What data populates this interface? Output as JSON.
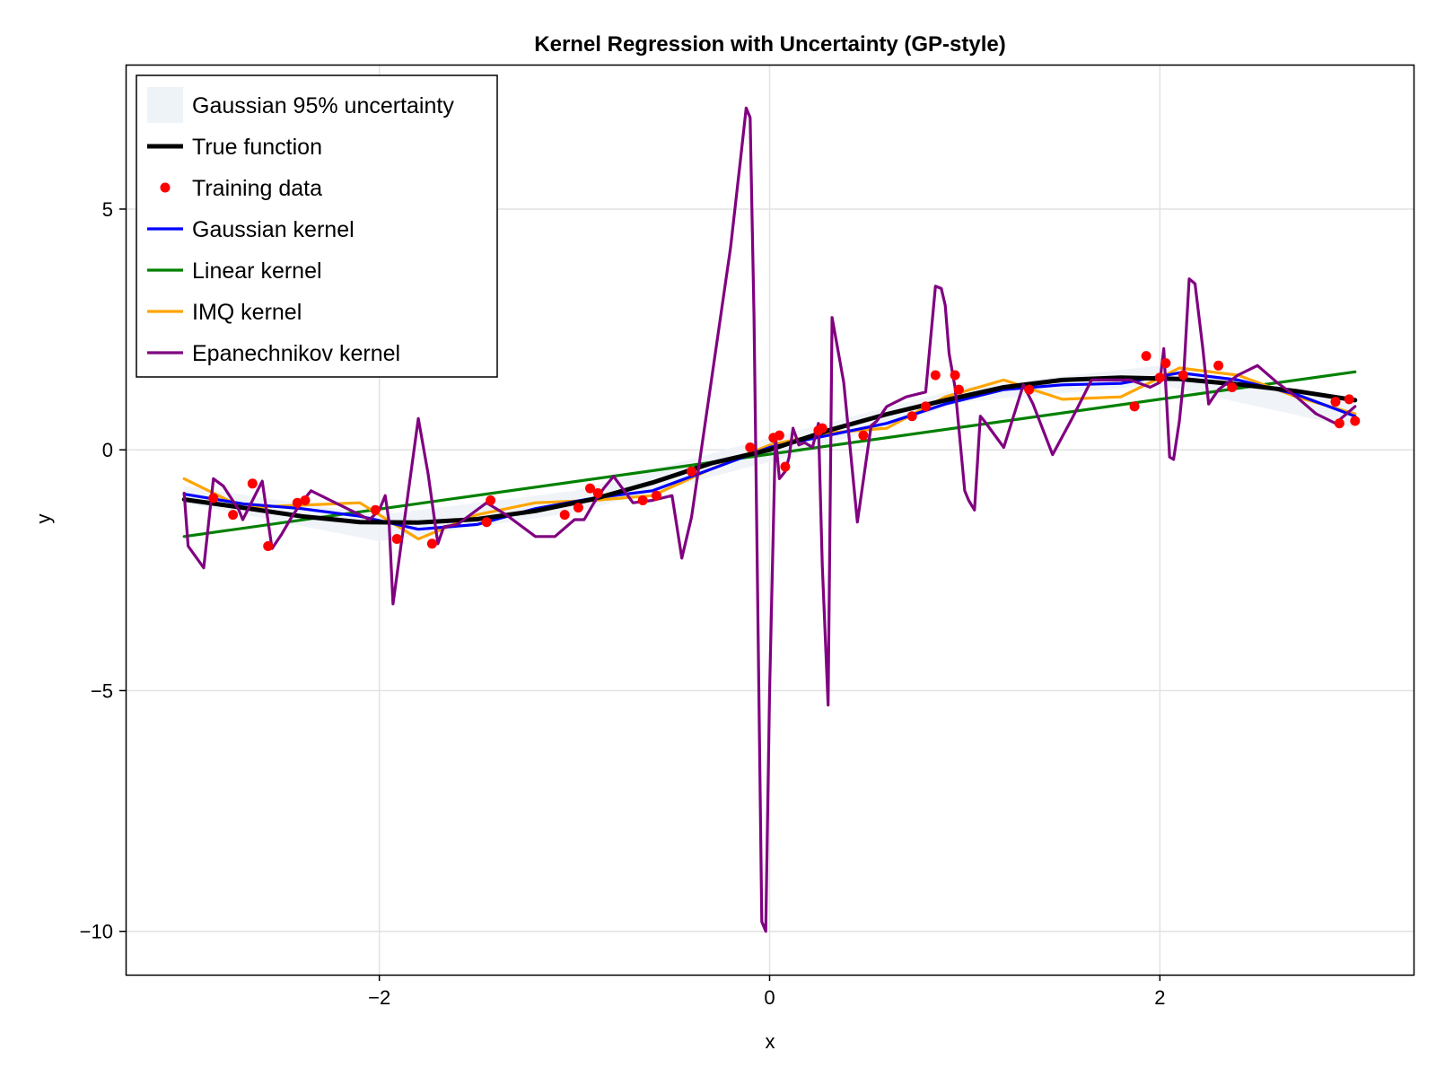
{
  "chart_data": {
    "type": "line",
    "title": "Kernel Regression with Uncertainty (GP-style)",
    "xlabel": "x",
    "ylabel": "y",
    "xlim": [
      -3.3,
      3.3
    ],
    "ylim": [
      -10.9,
      8.0
    ],
    "xticks": [
      -2,
      0,
      2
    ],
    "xtick_labels": [
      "−2",
      "0",
      "2"
    ],
    "yticks": [
      -10,
      -5,
      0,
      5
    ],
    "ytick_labels": [
      "−10",
      "−5",
      "0",
      "5"
    ],
    "grid": true,
    "legend_position": "top-left",
    "legend": [
      {
        "label": "Gaussian 95% uncertainty",
        "kind": "band",
        "color": "#eef3f8"
      },
      {
        "label": "True function",
        "kind": "line",
        "color": "#000000"
      },
      {
        "label": "Training data",
        "kind": "marker",
        "color": "#ff0000"
      },
      {
        "label": "Gaussian kernel",
        "kind": "line",
        "color": "#0000ff"
      },
      {
        "label": "Linear kernel",
        "kind": "line",
        "color": "#008000"
      },
      {
        "label": "IMQ kernel",
        "kind": "line",
        "color": "#ffa500"
      },
      {
        "label": "Epanechnikov kernel",
        "kind": "line",
        "color": "#800080"
      }
    ],
    "band": {
      "name": "Gaussian 95% uncertainty",
      "color": "#eef3f8",
      "x": [
        -3,
        -2,
        -1,
        0,
        1,
        2,
        3
      ],
      "lower": [
        -1.1,
        -1.9,
        -1.3,
        -0.25,
        1.0,
        1.35,
        0.45
      ],
      "upper": [
        -0.75,
        -1.35,
        -0.85,
        0.25,
        1.3,
        1.75,
        0.95
      ]
    },
    "series": [
      {
        "name": "True function",
        "color": "#000000",
        "x": [
          -3.0,
          -2.7,
          -2.4,
          -2.1,
          -1.8,
          -1.5,
          -1.2,
          -0.9,
          -0.6,
          -0.3,
          0.0,
          0.3,
          0.6,
          0.9,
          1.2,
          1.5,
          1.8,
          2.1,
          2.4,
          2.7,
          3.0
        ],
        "y": [
          -1.03,
          -1.2,
          -1.38,
          -1.5,
          -1.51,
          -1.44,
          -1.27,
          -1.02,
          -0.68,
          -0.28,
          0.0,
          0.4,
          0.74,
          1.03,
          1.3,
          1.45,
          1.5,
          1.47,
          1.36,
          1.22,
          1.03
        ]
      },
      {
        "name": "Gaussian kernel",
        "color": "#0000ff",
        "x": [
          -3.0,
          -2.7,
          -2.4,
          -2.1,
          -1.8,
          -1.5,
          -1.2,
          -0.9,
          -0.6,
          -0.3,
          0.0,
          0.3,
          0.6,
          0.9,
          1.2,
          1.5,
          1.8,
          2.1,
          2.4,
          2.7,
          3.0
        ],
        "y": [
          -0.92,
          -1.12,
          -1.22,
          -1.38,
          -1.65,
          -1.55,
          -1.22,
          -1.0,
          -0.85,
          -0.4,
          0.05,
          0.3,
          0.55,
          0.95,
          1.25,
          1.35,
          1.38,
          1.6,
          1.45,
          1.15,
          0.7
        ]
      },
      {
        "name": "Linear kernel",
        "color": "#008000",
        "x": [
          -3.0,
          3.0
        ],
        "y": [
          -1.8,
          1.62
        ]
      },
      {
        "name": "IMQ kernel",
        "color": "#ffa500",
        "x": [
          -3.0,
          -2.7,
          -2.4,
          -2.1,
          -1.8,
          -1.5,
          -1.2,
          -0.9,
          -0.6,
          -0.3,
          0.0,
          0.3,
          0.6,
          0.9,
          1.2,
          1.5,
          1.8,
          2.1,
          2.4,
          2.7,
          3.0
        ],
        "y": [
          -0.6,
          -1.2,
          -1.15,
          -1.1,
          -1.85,
          -1.35,
          -1.1,
          -1.05,
          -0.95,
          -0.4,
          0.1,
          0.35,
          0.45,
          1.1,
          1.45,
          1.05,
          1.1,
          1.7,
          1.55,
          1.1,
          0.75
        ]
      },
      {
        "name": "Epanechnikov kernel",
        "color": "#800080",
        "x": [
          -3.0,
          -2.98,
          -2.9,
          -2.85,
          -2.8,
          -2.72,
          -2.7,
          -2.6,
          -2.55,
          -2.5,
          -2.45,
          -2.4,
          -2.35,
          -2.2,
          -2.05,
          -2.0,
          -1.97,
          -1.95,
          -1.93,
          -1.8,
          -1.75,
          -1.7,
          -1.67,
          -1.6,
          -1.45,
          -1.35,
          -1.2,
          -1.1,
          -1.0,
          -0.95,
          -0.9,
          -0.85,
          -0.8,
          -0.7,
          -0.6,
          -0.5,
          -0.45,
          -0.4,
          -0.3,
          -0.2,
          -0.15,
          -0.12,
          -0.1,
          -0.08,
          -0.06,
          -0.04,
          -0.02,
          0.0,
          0.02,
          0.03,
          0.05,
          0.08,
          0.1,
          0.12,
          0.15,
          0.18,
          0.22,
          0.25,
          0.27,
          0.3,
          0.32,
          0.38,
          0.45,
          0.52,
          0.55,
          0.6,
          0.7,
          0.8,
          0.85,
          0.88,
          0.9,
          0.92,
          0.95,
          1.0,
          1.02,
          1.05,
          1.08,
          1.1,
          1.2,
          1.3,
          1.35,
          1.45,
          1.55,
          1.65,
          1.75,
          1.85,
          1.95,
          2.0,
          2.02,
          2.05,
          2.07,
          2.1,
          2.12,
          2.15,
          2.18,
          2.22,
          2.25,
          2.3,
          2.4,
          2.5,
          2.6,
          2.7,
          2.8,
          2.9,
          3.0
        ],
        "y": [
          -0.9,
          -2.0,
          -2.45,
          -0.6,
          -0.75,
          -1.25,
          -1.45,
          -0.65,
          -2.05,
          -1.75,
          -1.4,
          -1.1,
          -0.85,
          -1.15,
          -1.45,
          -1.25,
          -0.95,
          -1.5,
          -3.2,
          0.65,
          -0.5,
          -1.95,
          -1.6,
          -1.55,
          -1.1,
          -1.35,
          -1.8,
          -1.8,
          -1.45,
          -1.45,
          -1.1,
          -0.8,
          -0.55,
          -1.1,
          -1.05,
          -0.95,
          -2.25,
          -1.4,
          1.4,
          4.2,
          6.0,
          7.1,
          6.9,
          2.8,
          -3.5,
          -9.8,
          -10.0,
          -5.0,
          -1.5,
          0.3,
          -0.6,
          -0.45,
          -0.15,
          0.45,
          0.1,
          0.15,
          0.05,
          0.55,
          -2.4,
          -5.3,
          2.75,
          1.4,
          -1.5,
          0.5,
          0.6,
          0.9,
          1.1,
          1.2,
          3.4,
          3.35,
          3.0,
          2.0,
          1.3,
          -0.85,
          -1.05,
          -1.25,
          0.7,
          0.6,
          0.05,
          1.35,
          0.95,
          -0.1,
          0.65,
          1.45,
          1.45,
          1.45,
          1.3,
          1.4,
          2.1,
          -0.15,
          -0.2,
          0.6,
          1.4,
          3.55,
          3.45,
          2.1,
          0.95,
          1.25,
          1.55,
          1.75,
          1.4,
          1.1,
          0.75,
          0.55,
          0.9
        ]
      }
    ],
    "training_data": {
      "name": "Training data",
      "color": "#ff0000",
      "x": [
        -2.85,
        -2.75,
        -2.65,
        -2.57,
        -2.42,
        -2.38,
        -2.02,
        -1.91,
        -1.73,
        -1.45,
        -1.43,
        -1.05,
        -0.98,
        -0.92,
        -0.88,
        -0.65,
        -0.58,
        -0.4,
        -0.1,
        0.02,
        0.05,
        0.08,
        0.25,
        0.27,
        0.48,
        0.73,
        0.8,
        0.85,
        0.95,
        0.97,
        1.33,
        1.87,
        1.93,
        2.0,
        2.03,
        2.12,
        2.3,
        2.37,
        2.9,
        2.92,
        2.97,
        3.0
      ],
      "y": [
        -1.0,
        -1.35,
        -0.7,
        -2.0,
        -1.1,
        -1.05,
        -1.25,
        -1.85,
        -1.95,
        -1.5,
        -1.05,
        -1.35,
        -1.2,
        -0.8,
        -0.9,
        -1.05,
        -0.95,
        -0.45,
        0.05,
        0.25,
        0.3,
        -0.35,
        0.4,
        0.45,
        0.3,
        0.7,
        0.9,
        1.55,
        1.55,
        1.25,
        1.25,
        0.9,
        1.95,
        1.5,
        1.8,
        1.55,
        1.75,
        1.3,
        1.0,
        0.55,
        1.05,
        0.6
      ]
    }
  }
}
